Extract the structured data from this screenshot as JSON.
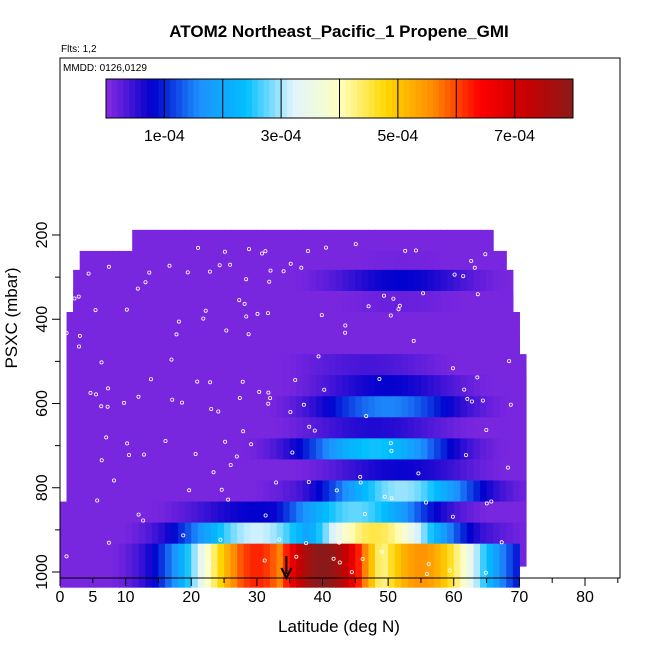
{
  "chart_data": {
    "type": "heatmap",
    "title": "ATOM2 Northeast_Pacific_1 Propene_GMI",
    "flights_note": "Flts: 1,2",
    "dates_note": "MMDD: 0126,0129",
    "xlabel": "Latitude (deg N)",
    "ylabel": "PSXC (mbar)",
    "xlim": [
      0,
      85
    ],
    "ylim": [
      1000,
      130
    ],
    "x_ticks": [
      0,
      5,
      10,
      20,
      30,
      40,
      50,
      60,
      70,
      80
    ],
    "y_ticks": [
      200,
      400,
      600,
      800,
      1000
    ],
    "colorbar": {
      "range": [
        0,
        0.0008
      ],
      "tick_values": [
        0.0001,
        0.0003,
        0.0005,
        0.0007
      ],
      "tick_labels": [
        "1e-04",
        "3e-04",
        "5e-04",
        "7e-04"
      ],
      "colors": [
        "#8a2be2",
        "#0000cd",
        "#1e90ff",
        "#00bfff",
        "#e0f4ff",
        "#ffffc0",
        "#ffd700",
        "#ff8c00",
        "#ff0000",
        "#c80000",
        "#8b1a1a"
      ]
    },
    "column_lat_range": [
      0,
      71
    ],
    "pressure_levels": [
      240,
      290,
      335,
      385,
      435,
      485,
      535,
      585,
      635,
      685,
      735,
      785,
      835,
      885,
      935,
      985
    ],
    "level_lat_extent": [
      [
        11,
        66
      ],
      [
        3,
        68
      ],
      [
        2,
        69
      ],
      [
        2,
        69
      ],
      [
        1,
        70
      ],
      [
        1,
        70
      ],
      [
        1,
        71
      ],
      [
        1,
        71
      ],
      [
        1,
        71
      ],
      [
        1,
        71
      ],
      [
        1,
        71
      ],
      [
        1,
        71
      ],
      [
        1,
        71
      ],
      [
        0,
        71
      ],
      [
        0,
        71
      ],
      [
        0,
        70
      ]
    ],
    "profile_hotspots": [
      {
        "lat": 52,
        "p": 340,
        "value": 8e-05
      },
      {
        "lat": 47,
        "p": 540,
        "value": 4e-05
      },
      {
        "lat": 50,
        "p": 620,
        "value": 0.00018
      },
      {
        "lat": 48,
        "p": 730,
        "value": 0.00025
      },
      {
        "lat": 52,
        "p": 830,
        "value": 0.0003
      },
      {
        "lat": 45,
        "p": 880,
        "value": 0.00028
      },
      {
        "lat": 30,
        "p": 930,
        "value": 0.00032
      },
      {
        "lat": 48,
        "p": 935,
        "value": 0.00045
      },
      {
        "lat": 40,
        "p": 985,
        "value": 0.0008
      },
      {
        "lat": 30,
        "p": 985,
        "value": 0.00062
      },
      {
        "lat": 55,
        "p": 985,
        "value": 0.00055
      }
    ],
    "marker_latitude": 34.5
  }
}
